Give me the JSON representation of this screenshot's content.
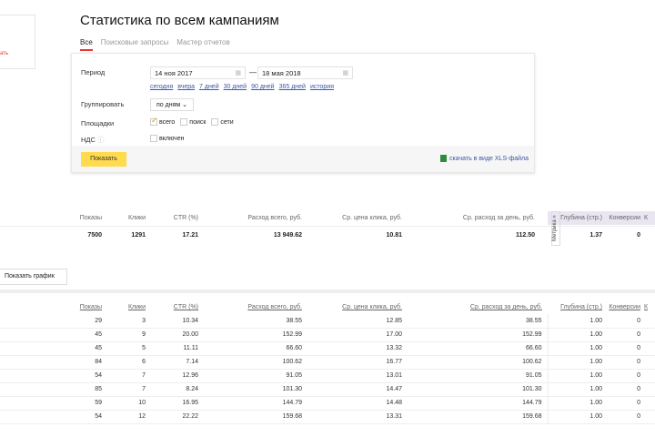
{
  "left": {
    "link": "ать"
  },
  "title": "Статистика по всем кампаниям",
  "tabs": [
    "Все",
    "Поисковые запросы",
    "Мастер отчетов"
  ],
  "form": {
    "period_label": "Период",
    "date_from": "14 ноя 2017",
    "date_to": "18 мая 2018",
    "dash": "—",
    "quick": [
      "сегодня",
      "вчера",
      "7 дней",
      "30 дней",
      "90 дней",
      "365 дней",
      "история"
    ],
    "group_label": "Группировать",
    "group_value": "по дням",
    "platforms_label": "Площадки",
    "platforms": [
      {
        "label": "всего",
        "checked": true
      },
      {
        "label": "поиск",
        "checked": false
      },
      {
        "label": "сети",
        "checked": false
      }
    ],
    "vat_label": "НДС",
    "vat_option": "включен",
    "show_button": "Показать",
    "xls_link": "скачать в виде XLS-файла"
  },
  "columns": [
    "Показы",
    "Клики",
    "CTR (%)",
    "Расход всего, руб.",
    "Ср. цена клика, руб.",
    "Ср. расход за день, руб.",
    "Глубина (стр.)",
    "Конверсии",
    "К"
  ],
  "totals": [
    "7500",
    "1291",
    "17.21",
    "13 949.62",
    "10.81",
    "112.50",
    "1.37",
    "0"
  ],
  "metrika": "Метрика »",
  "show_graph": "Показать график",
  "rows": [
    [
      "29",
      "3",
      "10.34",
      "38.55",
      "12.85",
      "38.55",
      "1.00",
      "0"
    ],
    [
      "45",
      "9",
      "20.00",
      "152.99",
      "17.00",
      "152.99",
      "1.00",
      "0"
    ],
    [
      "45",
      "5",
      "11.11",
      "66.60",
      "13.32",
      "66.60",
      "1.00",
      "0"
    ],
    [
      "84",
      "6",
      "7.14",
      "100.62",
      "16.77",
      "100.62",
      "1.00",
      "0"
    ],
    [
      "54",
      "7",
      "12.96",
      "91.05",
      "13.01",
      "91.05",
      "1.00",
      "0"
    ],
    [
      "85",
      "7",
      "8.24",
      "101.30",
      "14.47",
      "101.30",
      "1.00",
      "0"
    ],
    [
      "59",
      "10",
      "16.95",
      "144.79",
      "14.48",
      "144.79",
      "1.00",
      "0"
    ],
    [
      "54",
      "12",
      "22.22",
      "159.68",
      "13.31",
      "159.68",
      "1.00",
      "0"
    ]
  ]
}
